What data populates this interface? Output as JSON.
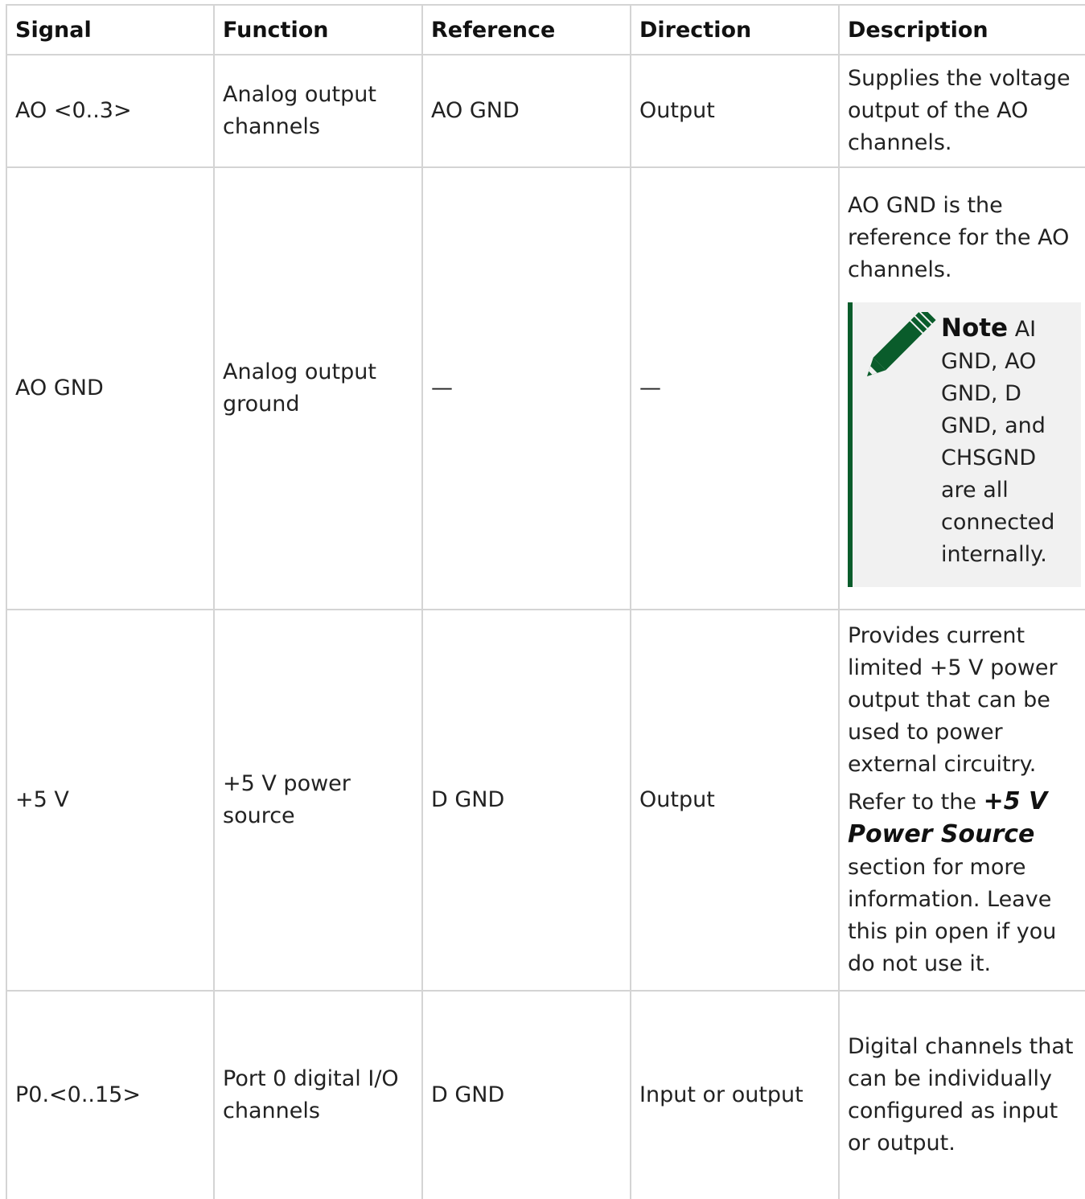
{
  "table": {
    "headers": {
      "signal": "Signal",
      "function": "Function",
      "reference": "Reference",
      "direction": "Direction",
      "description": "Description"
    },
    "rows": [
      {
        "signal": "AO <0..3>",
        "function": "Analog output channels",
        "reference": "AO GND",
        "direction": "Output",
        "description": "Supplies the voltage output of the AO channels."
      },
      {
        "signal": "AO GND",
        "function": "Analog output ground",
        "reference": "—",
        "direction": "—",
        "description": "AO GND is the reference for the AO channels.",
        "note": {
          "icon": "pencil-icon",
          "label": "Note",
          "text": "AI GND, AO GND, D GND, and CHSGND are all connected internally."
        }
      },
      {
        "signal": "+5 V",
        "function": "+5 V power source",
        "reference": "D GND",
        "direction": "Output",
        "description": "Provides current limited +5 V power output that can be used to power external circuitry.",
        "description_ref_prefix": "Refer to the",
        "description_ref_link": "+5 V Power Source",
        "description_ref_suffix": "section for more information. Leave this pin open if you do not use it."
      },
      {
        "signal": "P0.<0..15>",
        "function": "Port 0 digital I/O channels",
        "reference": "D GND",
        "direction": "Input or output",
        "description": "Digital channels that can be individually configured as input or output."
      }
    ]
  },
  "colors": {
    "note_accent": "#0a5c2b",
    "note_background": "#f1f1f1",
    "border": "#d4d4d4"
  }
}
